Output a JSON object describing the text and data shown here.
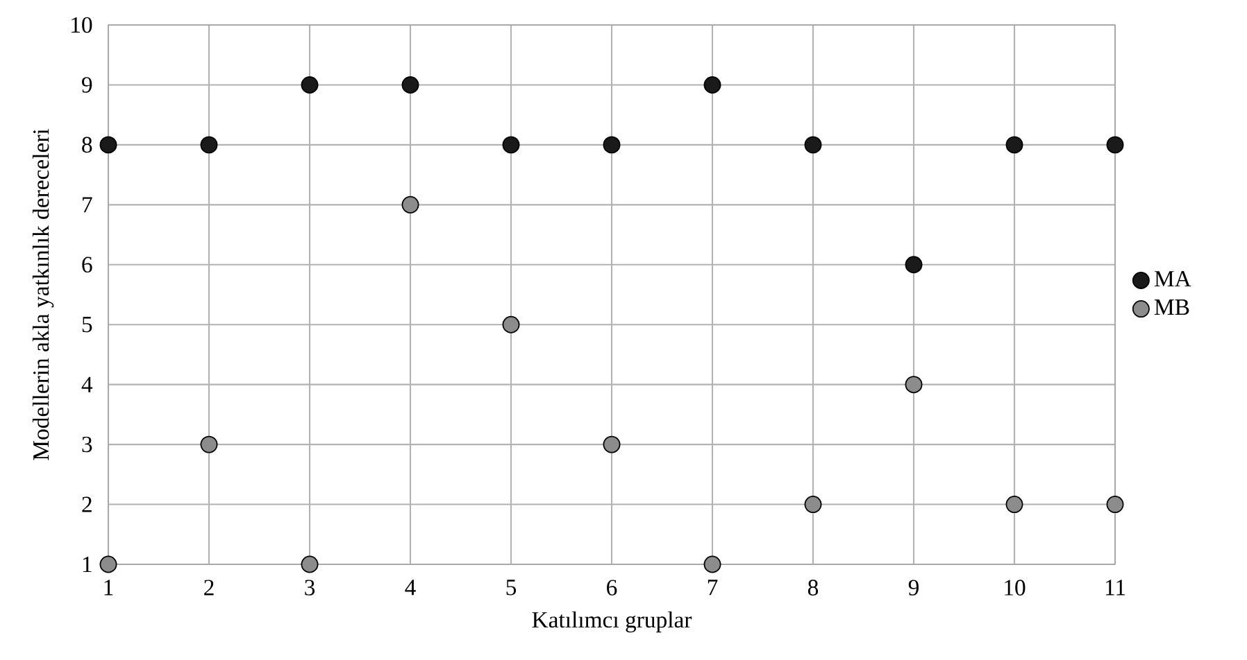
{
  "chart_data": {
    "type": "scatter",
    "xlabel": "Katılımcı gruplar",
    "ylabel": "Modellerin akla yatkınlık dereceleri",
    "x": [
      1,
      2,
      3,
      4,
      5,
      6,
      7,
      8,
      9,
      10,
      11
    ],
    "series": [
      {
        "name": "MA",
        "color": "#1a1a1a",
        "values": [
          8,
          8,
          9,
          9,
          8,
          8,
          9,
          8,
          6,
          8,
          8
        ]
      },
      {
        "name": "MB",
        "color": "#8c8c8c",
        "values": [
          1,
          3,
          1,
          7,
          5,
          3,
          1,
          2,
          4,
          2,
          2
        ]
      }
    ],
    "xlim": [
      1,
      11
    ],
    "xticks": [
      1,
      2,
      3,
      4,
      5,
      6,
      7,
      8,
      9,
      10,
      11
    ],
    "ylim": [
      1,
      10
    ],
    "yticks": [
      1,
      2,
      3,
      4,
      5,
      6,
      7,
      8,
      9,
      10
    ],
    "grid": true,
    "legend": "right",
    "marker": "circle"
  }
}
